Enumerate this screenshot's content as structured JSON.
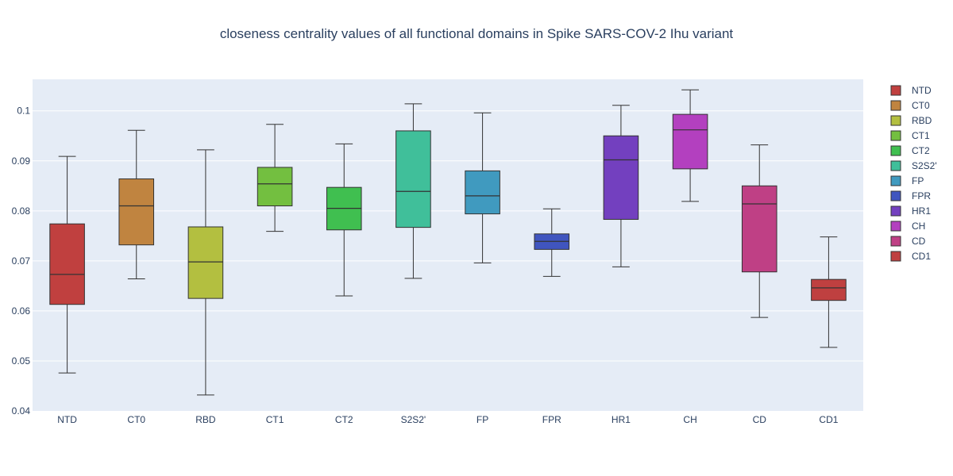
{
  "chart_data": {
    "type": "box",
    "title": "closeness centrality values of all functional domains in Spike SARS-COV-2 Ihu variant",
    "xlabel": "",
    "ylabel": "",
    "ylim": [
      0.04,
      0.1063
    ],
    "yticks": [
      0.04,
      0.05,
      0.06,
      0.07,
      0.08,
      0.09,
      0.1
    ],
    "ytick_labels": [
      "0.04",
      "0.05",
      "0.06",
      "0.07",
      "0.08",
      "0.09",
      "0.1"
    ],
    "grid": true,
    "legend_position": "right",
    "plot_bgcolor": "#e5ecf6",
    "series": [
      {
        "name": "NTD",
        "color": "#c0403f",
        "min": 0.0476,
        "q1": 0.0613,
        "median": 0.0673,
        "q3": 0.0774,
        "max": 0.0909
      },
      {
        "name": "CT0",
        "color": "#c08440",
        "min": 0.0664,
        "q1": 0.0732,
        "median": 0.081,
        "q3": 0.0864,
        "max": 0.0961
      },
      {
        "name": "RBD",
        "color": "#b3bf40",
        "min": 0.0432,
        "q1": 0.0625,
        "median": 0.0698,
        "q3": 0.0768,
        "max": 0.0922
      },
      {
        "name": "CT1",
        "color": "#73bf40",
        "min": 0.0759,
        "q1": 0.081,
        "median": 0.0854,
        "q3": 0.0887,
        "max": 0.0973
      },
      {
        "name": "CT2",
        "color": "#40bf50",
        "min": 0.063,
        "q1": 0.0762,
        "median": 0.0805,
        "q3": 0.0847,
        "max": 0.0934
      },
      {
        "name": "S2S2'",
        "color": "#40bf9a",
        "min": 0.0665,
        "q1": 0.0767,
        "median": 0.0839,
        "q3": 0.096,
        "max": 0.1014
      },
      {
        "name": "FP",
        "color": "#409abf",
        "min": 0.0696,
        "q1": 0.0794,
        "median": 0.083,
        "q3": 0.088,
        "max": 0.0996
      },
      {
        "name": "FPR",
        "color": "#4055bf",
        "min": 0.0669,
        "q1": 0.0723,
        "median": 0.0739,
        "q3": 0.0754,
        "max": 0.0804
      },
      {
        "name": "HR1",
        "color": "#7340bf",
        "min": 0.0688,
        "q1": 0.0783,
        "median": 0.0902,
        "q3": 0.095,
        "max": 0.1011
      },
      {
        "name": "CH",
        "color": "#b340bf",
        "min": 0.0819,
        "q1": 0.0884,
        "median": 0.0962,
        "q3": 0.0993,
        "max": 0.1042
      },
      {
        "name": "CD",
        "color": "#bf4085",
        "min": 0.0587,
        "q1": 0.0678,
        "median": 0.0814,
        "q3": 0.085,
        "max": 0.0932
      },
      {
        "name": "CD1",
        "color": "#bf4040",
        "min": 0.0527,
        "q1": 0.0621,
        "median": 0.0646,
        "q3": 0.0663,
        "max": 0.0748
      }
    ]
  }
}
